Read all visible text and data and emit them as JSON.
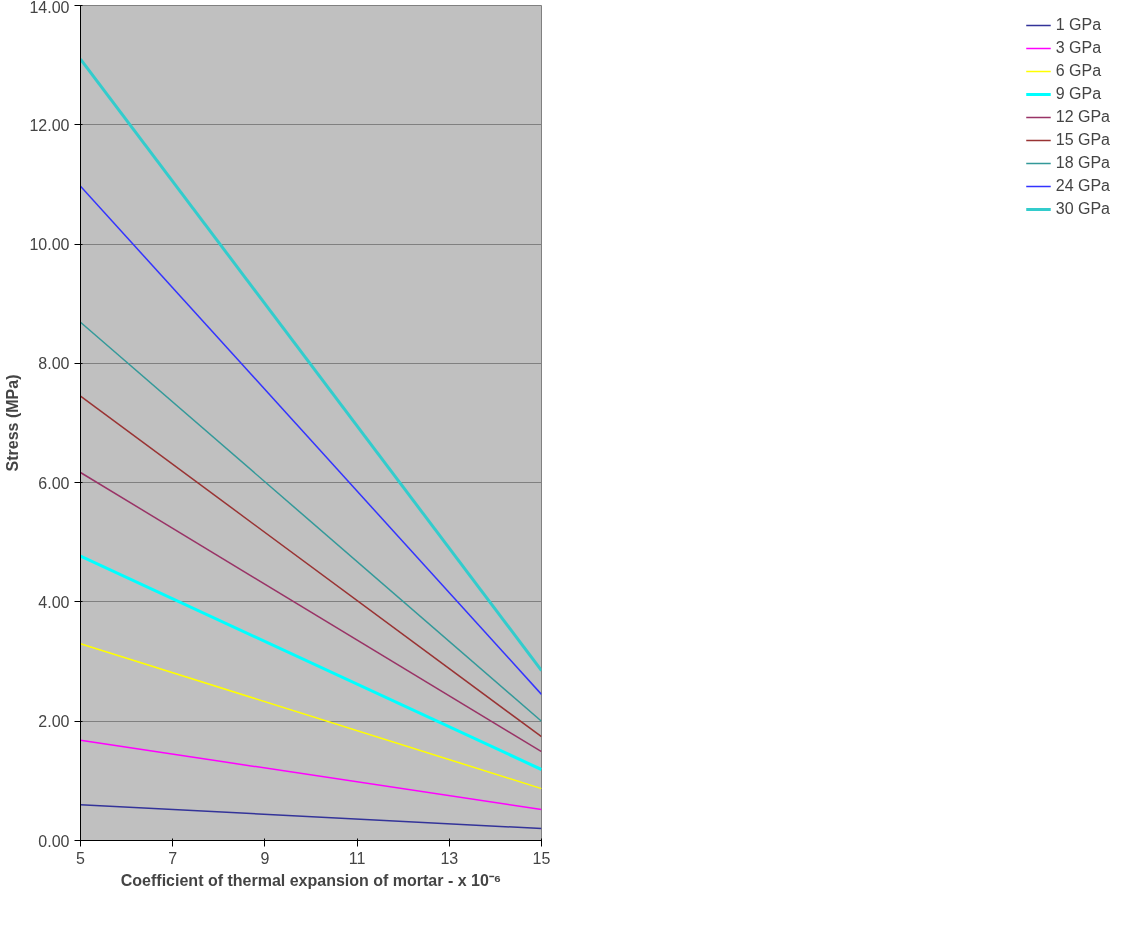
{
  "chart_data": {
    "type": "line",
    "xlabel": "Coefficient of thermal expansion of mortar - x 10⁻⁶",
    "ylabel": "Stress (MPa)",
    "x": [
      5,
      15
    ],
    "xlim": [
      5,
      15
    ],
    "xticks": [
      5,
      7,
      9,
      11,
      13,
      15
    ],
    "ylim": [
      0,
      14
    ],
    "yticks": [
      {
        "value": 0,
        "label": "0.00"
      },
      {
        "value": 2,
        "label": "2.00"
      },
      {
        "value": 4,
        "label": "4.00"
      },
      {
        "value": 6,
        "label": "6.00"
      },
      {
        "value": 8,
        "label": "8.00"
      },
      {
        "value": 10,
        "label": "10.00"
      },
      {
        "value": 12,
        "label": "12.00"
      },
      {
        "value": 14,
        "label": "14.00"
      }
    ],
    "grid": "y",
    "legend": "right",
    "marker": "none",
    "line_style": "solid",
    "series": [
      {
        "name": "1 GPa",
        "color": "#333399",
        "values": [
          0.6,
          0.2
        ]
      },
      {
        "name": "3 GPa",
        "color": "#ff00ff",
        "values": [
          1.68,
          0.52
        ]
      },
      {
        "name": "6 GPa",
        "color": "#ffff00",
        "values": [
          3.3,
          0.87
        ]
      },
      {
        "name": "9 GPa",
        "color": "#00ffff",
        "values": [
          4.77,
          1.19
        ]
      },
      {
        "name": "12 GPa",
        "color": "#993366",
        "values": [
          6.17,
          1.49
        ]
      },
      {
        "name": "15 GPa",
        "color": "#993333",
        "values": [
          7.45,
          1.74
        ]
      },
      {
        "name": "18 GPa",
        "color": "#339999",
        "values": [
          8.69,
          2.0
        ]
      },
      {
        "name": "24 GPa",
        "color": "#3333ff",
        "values": [
          10.97,
          2.45
        ]
      },
      {
        "name": "30 GPa",
        "color": "#33cccc",
        "values": [
          13.1,
          2.85
        ]
      }
    ]
  }
}
